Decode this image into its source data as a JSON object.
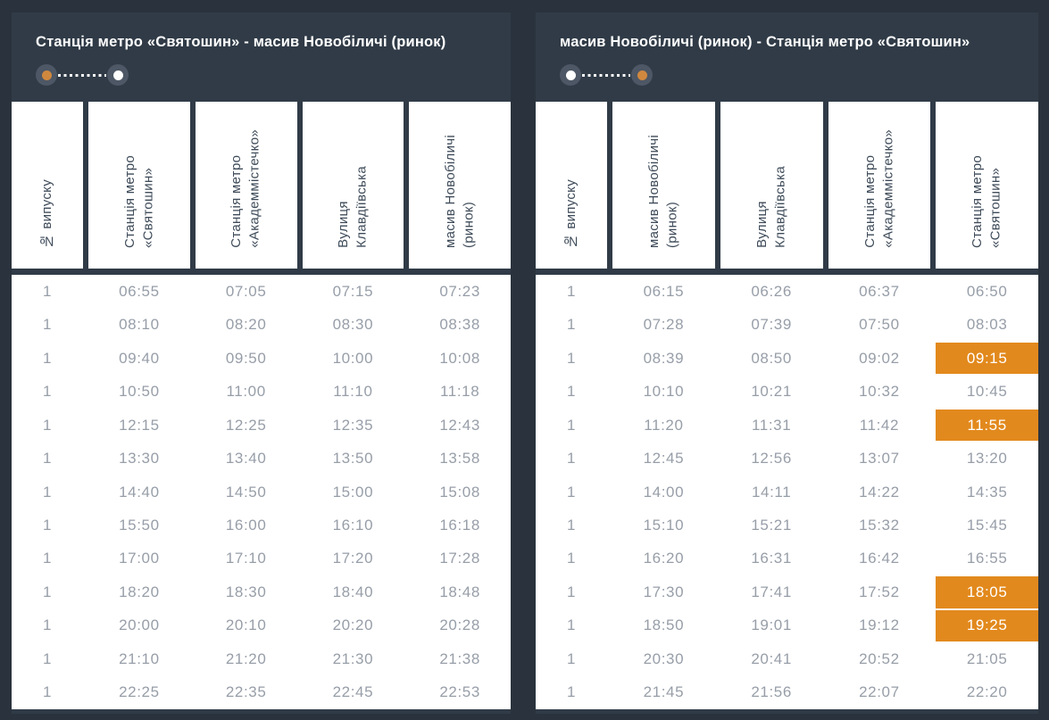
{
  "colors": {
    "page_bg": "#2a333d",
    "panel_bg": "#303b47",
    "header_cell_bg": "#ffffff",
    "header_text": "#3e4b59",
    "time_text": "#979ea8",
    "highlight_bg": "#e2891d",
    "highlight_text": "#ffffff",
    "title_text": "#ffffff",
    "endpoint_circle": "#4d5765",
    "route_orange_dot": "#d0883f",
    "route_white_dot": "#ffffff"
  },
  "panels": [
    {
      "title": "Станція метро «Святошин» - масив Новобіличі (ринок)",
      "route": {
        "start": "orange",
        "end": "white"
      },
      "columns": [
        "№ випуску",
        "Станція метро\n«Святошин»",
        "Станція метро\n«Академмістечко»",
        "Вулиця\nКлавдіївська",
        "масив Новобіличі\n(ринок)"
      ],
      "rows": [
        {
          "trip": "1",
          "times": [
            "06:55",
            "07:05",
            "07:15",
            "07:23"
          ],
          "highlighted": []
        },
        {
          "trip": "1",
          "times": [
            "08:10",
            "08:20",
            "08:30",
            "08:38"
          ],
          "highlighted": []
        },
        {
          "trip": "1",
          "times": [
            "09:40",
            "09:50",
            "10:00",
            "10:08"
          ],
          "highlighted": []
        },
        {
          "trip": "1",
          "times": [
            "10:50",
            "11:00",
            "11:10",
            "11:18"
          ],
          "highlighted": []
        },
        {
          "trip": "1",
          "times": [
            "12:15",
            "12:25",
            "12:35",
            "12:43"
          ],
          "highlighted": []
        },
        {
          "trip": "1",
          "times": [
            "13:30",
            "13:40",
            "13:50",
            "13:58"
          ],
          "highlighted": []
        },
        {
          "trip": "1",
          "times": [
            "14:40",
            "14:50",
            "15:00",
            "15:08"
          ],
          "highlighted": []
        },
        {
          "trip": "1",
          "times": [
            "15:50",
            "16:00",
            "16:10",
            "16:18"
          ],
          "highlighted": []
        },
        {
          "trip": "1",
          "times": [
            "17:00",
            "17:10",
            "17:20",
            "17:28"
          ],
          "highlighted": []
        },
        {
          "trip": "1",
          "times": [
            "18:20",
            "18:30",
            "18:40",
            "18:48"
          ],
          "highlighted": []
        },
        {
          "trip": "1",
          "times": [
            "20:00",
            "20:10",
            "20:20",
            "20:28"
          ],
          "highlighted": []
        },
        {
          "trip": "1",
          "times": [
            "21:10",
            "21:20",
            "21:30",
            "21:38"
          ],
          "highlighted": []
        },
        {
          "trip": "1",
          "times": [
            "22:25",
            "22:35",
            "22:45",
            "22:53"
          ],
          "highlighted": []
        }
      ]
    },
    {
      "title": "масив Новобіличі (ринок) - Станція метро «Святошин»",
      "route": {
        "start": "white",
        "end": "orange"
      },
      "columns": [
        "№ випуску",
        "масив Новобіличі\n(ринок)",
        "Вулиця\nКлавдіївська",
        "Станція метро\n«Академмістечко»",
        "Станція метро\n«Святошин»"
      ],
      "rows": [
        {
          "trip": "1",
          "times": [
            "06:15",
            "06:26",
            "06:37",
            "06:50"
          ],
          "highlighted": []
        },
        {
          "trip": "1",
          "times": [
            "07:28",
            "07:39",
            "07:50",
            "08:03"
          ],
          "highlighted": []
        },
        {
          "trip": "1",
          "times": [
            "08:39",
            "08:50",
            "09:02",
            "09:15"
          ],
          "highlighted": [
            3
          ]
        },
        {
          "trip": "1",
          "times": [
            "10:10",
            "10:21",
            "10:32",
            "10:45"
          ],
          "highlighted": []
        },
        {
          "trip": "1",
          "times": [
            "11:20",
            "11:31",
            "11:42",
            "11:55"
          ],
          "highlighted": [
            3
          ]
        },
        {
          "trip": "1",
          "times": [
            "12:45",
            "12:56",
            "13:07",
            "13:20"
          ],
          "highlighted": []
        },
        {
          "trip": "1",
          "times": [
            "14:00",
            "14:11",
            "14:22",
            "14:35"
          ],
          "highlighted": []
        },
        {
          "trip": "1",
          "times": [
            "15:10",
            "15:21",
            "15:32",
            "15:45"
          ],
          "highlighted": []
        },
        {
          "trip": "1",
          "times": [
            "16:20",
            "16:31",
            "16:42",
            "16:55"
          ],
          "highlighted": []
        },
        {
          "trip": "1",
          "times": [
            "17:30",
            "17:41",
            "17:52",
            "18:05"
          ],
          "highlighted": [
            3
          ]
        },
        {
          "trip": "1",
          "times": [
            "18:50",
            "19:01",
            "19:12",
            "19:25"
          ],
          "highlighted": [
            3
          ]
        },
        {
          "trip": "1",
          "times": [
            "20:30",
            "20:41",
            "20:52",
            "21:05"
          ],
          "highlighted": []
        },
        {
          "trip": "1",
          "times": [
            "21:45",
            "21:56",
            "22:07",
            "22:20"
          ],
          "highlighted": []
        }
      ]
    }
  ]
}
